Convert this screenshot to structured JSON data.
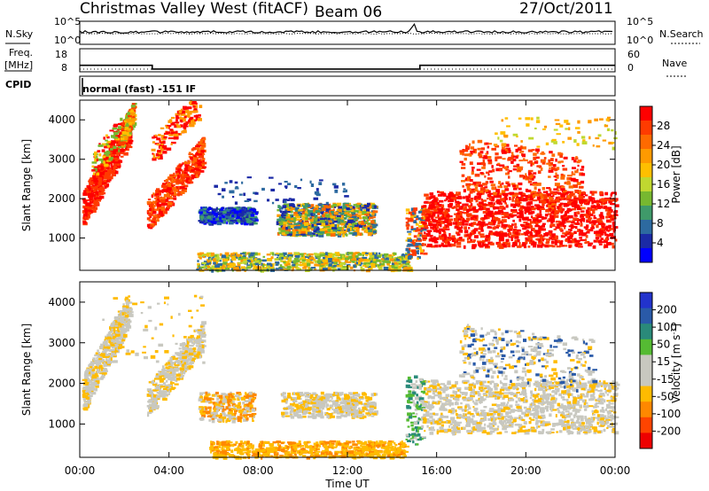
{
  "header": {
    "station_label": "Christmas Valley West (fitACF)",
    "beam_label": "Beam 06",
    "date_label": "27/Oct/2011"
  },
  "status_panels": {
    "nsky_label": "N.Sky",
    "nsearch_label": "N.Search",
    "freq_label_line1": "Freq.",
    "freq_label_line2": "[MHz]",
    "nave_label": "Nave",
    "cpid_label": "CPID",
    "cpid_value": "normal (fast) -151 IF",
    "noise_tick_top": "10^5",
    "noise_tick_bottom": "10^0",
    "freq_tick_top": "18",
    "freq_tick_bottom": "8",
    "nave_tick_top": "60",
    "nave_tick_bottom": "0",
    "freq_series": {
      "x_hours": [
        0,
        3.25,
        3.25,
        15.25,
        15.25,
        24
      ],
      "mhz": [
        10.8,
        10.8,
        9.2,
        9.2,
        10.8,
        10.8
      ]
    },
    "nave_series": {
      "x_hours": [
        0,
        24
      ],
      "value": [
        7,
        7
      ]
    }
  },
  "chart_data": [
    {
      "type": "heatmap",
      "parameter": "power",
      "x_unit": "UT hour",
      "y_unit": "km",
      "ylabel": "Slant Range [km]",
      "xlim": [
        0,
        24
      ],
      "ylim": [
        180,
        4500
      ],
      "yticks": [
        1000,
        2000,
        3000,
        4000
      ],
      "ytick_labels": [
        "1000",
        "2000",
        "3000",
        "4000"
      ],
      "colorbar_label": "Power [dB]",
      "colorbar_ticks": [
        28,
        24,
        20,
        16,
        12,
        8,
        4
      ],
      "colorbar_tick_labels": [
        "28",
        "24",
        "20",
        "16",
        "12",
        "8",
        "4"
      ],
      "colorbar_colors": [
        "#ff0000",
        "#ff3b00",
        "#ff6a00",
        "#ff9a00",
        "#ffbf00",
        "#c0d830",
        "#77b830",
        "#3f9a6a",
        "#2d6aa0",
        "#1b2aa6",
        "#0000ff"
      ],
      "features": [
        {
          "t0": 0.1,
          "t1": 2.2,
          "r0": 1300,
          "r1": 2200,
          "slope_r1": 2100,
          "c": [
            "#ff0000",
            "#ff3b00"
          ],
          "n": 520
        },
        {
          "t0": 1.8,
          "t1": 2.4,
          "r0": 3300,
          "r1": 3900,
          "slope_r1": 600,
          "c": [
            "#ff3b00",
            "#ff9a00",
            "#ffbf00",
            "#77b830"
          ],
          "n": 140
        },
        {
          "t0": 0.5,
          "t1": 1.8,
          "r0": 2400,
          "r1": 3200,
          "slope_r1": 900,
          "c": [
            "#77b830",
            "#ffbf00",
            "#ff0000"
          ],
          "n": 80
        },
        {
          "t0": 3.0,
          "t1": 5.5,
          "r0": 1200,
          "r1": 2000,
          "slope_r1": 1600,
          "c": [
            "#ff0000",
            "#ff3b00",
            "#ff6a00"
          ],
          "n": 420
        },
        {
          "t0": 3.2,
          "t1": 5.4,
          "r0": 2900,
          "r1": 3600,
          "slope_r1": 1200,
          "c": [
            "#ff0000",
            "#ff9a00"
          ],
          "n": 160
        },
        {
          "t0": 5.3,
          "t1": 7.8,
          "r0": 1400,
          "r1": 1800,
          "slope_r1": 0,
          "c": [
            "#1b2aa6",
            "#2d6aa0",
            "#3f9a6a",
            "#0000ff"
          ],
          "n": 380
        },
        {
          "t0": 8.8,
          "t1": 13.2,
          "r0": 1100,
          "r1": 1900,
          "slope_r1": 0,
          "c": [
            "#1b2aa6",
            "#2d6aa0",
            "#3f9a6a",
            "#77b830",
            "#ffbf00",
            "#ff9a00",
            "#ff6a00"
          ],
          "n": 760
        },
        {
          "t0": 5.2,
          "t1": 14.8,
          "r0": 200,
          "r1": 650,
          "slope_r1": 0,
          "c": [
            "#2d6aa0",
            "#77b830",
            "#c0d830",
            "#ffbf00",
            "#ff9a00"
          ],
          "n": 700
        },
        {
          "t0": 14.6,
          "t1": 15.4,
          "r0": 500,
          "r1": 1800,
          "slope_r1": 0,
          "c": [
            "#ff3b00",
            "#ffbf00",
            "#2d6aa0"
          ],
          "n": 120
        },
        {
          "t0": 15.3,
          "t1": 24,
          "r0": 800,
          "r1": 2200,
          "slope_r1": 0,
          "c": [
            "#ff0000",
            "#ff0000",
            "#ff3b00"
          ],
          "n": 1300
        },
        {
          "t0": 17.0,
          "t1": 22.5,
          "r0": 2200,
          "r1": 3600,
          "slope_r1": -500,
          "c": [
            "#ff0000",
            "#ff3b00",
            "#ff6a00"
          ],
          "n": 380
        },
        {
          "t0": 18.5,
          "t1": 24,
          "r0": 3300,
          "r1": 4100,
          "slope_r1": 0,
          "c": [
            "#ff9a00",
            "#ffbf00",
            "#c0d830"
          ],
          "n": 70
        },
        {
          "t0": 6.0,
          "t1": 12.0,
          "r0": 1900,
          "r1": 2600,
          "slope_r1": 0,
          "c": [
            "#1b2aa6",
            "#2d6aa0"
          ],
          "n": 60
        }
      ]
    },
    {
      "type": "heatmap",
      "parameter": "velocity",
      "x_unit": "UT hour",
      "y_unit": "km",
      "ylabel": "Slant Range [km]",
      "xlabel": "Time UT",
      "xlim": [
        0,
        24
      ],
      "xticks": [
        0,
        4,
        8,
        12,
        16,
        20,
        24
      ],
      "xtick_labels": [
        "00:00",
        "04:00",
        "08:00",
        "12:00",
        "16:00",
        "20:00",
        "00:00"
      ],
      "ylim": [
        180,
        4500
      ],
      "yticks": [
        1000,
        2000,
        3000,
        4000
      ],
      "ytick_labels": [
        "1000",
        "2000",
        "3000",
        "4000"
      ],
      "colorbar_label": "Velocity [m s^-1]",
      "colorbar_ticks": [
        200,
        100,
        50,
        15,
        -15,
        -50,
        -100,
        -200
      ],
      "colorbar_tick_labels": [
        "200",
        "100",
        "50",
        "15",
        "-15",
        "-50",
        "-100",
        "-200"
      ],
      "colorbar_colors": [
        "#2233cc",
        "#2a5aa8",
        "#2a8a7a",
        "#55bb33",
        "#c8c8c0",
        "#c8c8c0",
        "#ffbb00",
        "#ff8800",
        "#ff4400",
        "#ee0000"
      ],
      "features": [
        {
          "t0": 0.1,
          "t1": 2.2,
          "r0": 1300,
          "r1": 2200,
          "slope_r1": 2100,
          "c": [
            "#c8c8c0",
            "#c8c8c0",
            "#ffbb00"
          ],
          "n": 480
        },
        {
          "t0": 3.0,
          "t1": 5.5,
          "r0": 1200,
          "r1": 2000,
          "slope_r1": 1600,
          "c": [
            "#c8c8c0",
            "#c8c8c0",
            "#ffbb00"
          ],
          "n": 380
        },
        {
          "t0": 5.3,
          "t1": 7.8,
          "r0": 1100,
          "r1": 1800,
          "slope_r1": 0,
          "c": [
            "#ffbb00",
            "#ff8800",
            "#c8c8c0"
          ],
          "n": 260
        },
        {
          "t0": 9.0,
          "t1": 13.2,
          "r0": 1200,
          "r1": 1800,
          "slope_r1": 0,
          "c": [
            "#c8c8c0",
            "#c8c8c0",
            "#ffbb00"
          ],
          "n": 420
        },
        {
          "t0": 5.8,
          "t1": 14.6,
          "r0": 200,
          "r1": 600,
          "slope_r1": 0,
          "c": [
            "#ffbb00",
            "#ffbb00",
            "#ff8800"
          ],
          "n": 600
        },
        {
          "t0": 14.6,
          "t1": 15.4,
          "r0": 500,
          "r1": 2200,
          "slope_r1": 0,
          "c": [
            "#55bb33",
            "#2a8a7a",
            "#c8c8c0"
          ],
          "n": 120
        },
        {
          "t0": 15.3,
          "t1": 24,
          "r0": 800,
          "r1": 2100,
          "slope_r1": 0,
          "c": [
            "#c8c8c0",
            "#c8c8c0",
            "#c8c8c0",
            "#ffbb00"
          ],
          "n": 1100
        },
        {
          "t0": 17.0,
          "t1": 23.0,
          "r0": 2200,
          "r1": 3500,
          "slope_r1": -400,
          "c": [
            "#c8c8c0",
            "#c8c8c0",
            "#ffbb00",
            "#2a5aa8"
          ],
          "n": 340
        },
        {
          "t0": 1.0,
          "t1": 5.5,
          "r0": 2500,
          "r1": 4200,
          "slope_r1": 0,
          "c": [
            "#ffbb00",
            "#c8c8c0"
          ],
          "n": 60
        }
      ]
    }
  ]
}
